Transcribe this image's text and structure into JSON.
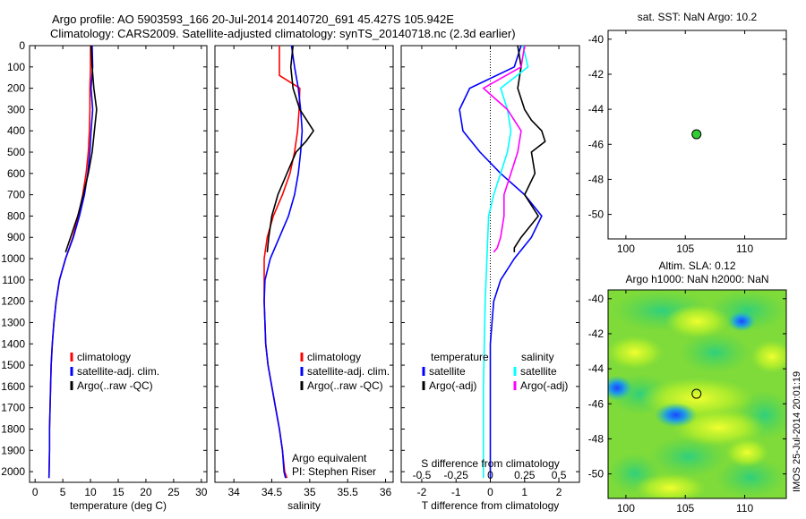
{
  "header": {
    "line1": "Argo profile: AO 5903593_166 20-Jul-2014 20140720_691 45.427S 105.942E",
    "line2": "Climatology: CARS2009. Satellite-adjusted climatology: synTS_20140718.nc (2.3d earlier)"
  },
  "side_text": "IMOS 25-Jul-2014 20:01:19",
  "colors": {
    "climatology": "#ff0000",
    "satellite": "#0000ff",
    "argo": "#000000",
    "satellite_s": "#00ffff",
    "argo_s": "#ff00ff",
    "marker": "#33cc33"
  },
  "chart_data": [
    {
      "type": "line",
      "id": "temperature",
      "xlabel": "temperature (deg C)",
      "xlim": [
        -1,
        31
      ],
      "ylim": [
        2050,
        0
      ],
      "xticks": [
        0,
        5,
        10,
        15,
        20,
        25,
        30
      ],
      "yticks": [
        0,
        100,
        200,
        300,
        400,
        500,
        600,
        700,
        800,
        900,
        1000,
        1100,
        1200,
        1300,
        1400,
        1500,
        1600,
        1700,
        1800,
        1900,
        2000
      ],
      "legend": {
        "placement": "center-left",
        "entries": [
          "climatology",
          "satellite-adj. clim.",
          "Argo(..raw -QC)"
        ]
      },
      "series": [
        {
          "name": "climatology",
          "color": "#ff0000",
          "x": [
            10.0,
            10.0,
            9.9,
            9.9,
            9.8,
            9.6,
            9.2,
            8.6,
            7.8,
            6.8,
            5.5,
            4.4,
            3.8,
            3.4,
            3.1,
            2.9,
            2.8,
            2.7,
            2.6,
            2.6,
            2.5
          ],
          "y": [
            0,
            100,
            200,
            300,
            400,
            500,
            600,
            700,
            800,
            900,
            1000,
            1100,
            1200,
            1300,
            1400,
            1500,
            1600,
            1700,
            1800,
            1900,
            2030
          ]
        },
        {
          "name": "satellite-adj. clim.",
          "color": "#0000ff",
          "x": [
            10.3,
            10.4,
            10.1,
            10.4,
            10.1,
            9.9,
            9.5,
            8.9,
            8.0,
            6.9,
            5.5,
            4.4,
            3.8,
            3.4,
            3.1,
            2.9,
            2.8,
            2.7,
            2.6,
            2.6,
            2.5
          ],
          "y": [
            0,
            100,
            200,
            300,
            400,
            500,
            600,
            700,
            800,
            900,
            1000,
            1100,
            1200,
            1300,
            1400,
            1500,
            1600,
            1700,
            1800,
            1900,
            2030
          ]
        },
        {
          "name": "Argo(..raw -QC)",
          "color": "#000000",
          "x": [
            10.1,
            10.3,
            10.6,
            11.1,
            10.7,
            10.3,
            9.6,
            8.7,
            7.7,
            6.4,
            5.5
          ],
          "y": [
            0,
            100,
            200,
            300,
            400,
            500,
            600,
            700,
            800,
            900,
            970
          ]
        }
      ]
    },
    {
      "type": "line",
      "id": "salinity",
      "xlabel": "salinity",
      "xlim": [
        33.75,
        36.1
      ],
      "ylim": [
        2050,
        0
      ],
      "xticks": [
        34,
        34.5,
        35,
        35.5,
        36
      ],
      "legend": {
        "placement": "center-right",
        "entries": [
          "climatology",
          "satellite-adj. clim.",
          "Argo(..raw -QC)"
        ]
      },
      "annotation": [
        "Argo equivalent",
        "PI: Stephen Riser"
      ],
      "series": [
        {
          "name": "climatology",
          "color": "#ff0000",
          "x": [
            34.6,
            34.6,
            34.6,
            34.87,
            34.86,
            34.84,
            34.8,
            34.74,
            34.64,
            34.52,
            34.44,
            34.4,
            34.4,
            34.42,
            34.45,
            34.5,
            34.55,
            34.6,
            34.64,
            34.67,
            34.7
          ],
          "y": [
            0,
            100,
            140,
            200,
            300,
            400,
            500,
            600,
            700,
            800,
            900,
            1000,
            1200,
            1400,
            1500,
            1600,
            1700,
            1800,
            1900,
            2000,
            2030
          ]
        },
        {
          "name": "satellite-adj. clim.",
          "color": "#0000ff",
          "x": [
            34.76,
            34.8,
            34.85,
            34.88,
            34.9,
            34.88,
            34.85,
            34.8,
            34.72,
            34.6,
            34.48,
            34.41,
            34.4,
            34.42,
            34.45,
            34.5,
            34.55,
            34.6,
            34.64,
            34.66,
            34.68
          ],
          "y": [
            0,
            100,
            200,
            300,
            400,
            500,
            600,
            700,
            800,
            900,
            1000,
            1100,
            1200,
            1400,
            1500,
            1600,
            1700,
            1800,
            1900,
            2000,
            2030
          ]
        },
        {
          "name": "Argo(..raw -QC)",
          "color": "#000000",
          "x": [
            34.78,
            34.75,
            34.78,
            34.87,
            34.96,
            35.05,
            34.95,
            34.82,
            34.7,
            34.58,
            34.5,
            34.46,
            34.44
          ],
          "y": [
            0,
            100,
            200,
            300,
            350,
            400,
            450,
            500,
            600,
            700,
            800,
            900,
            970
          ]
        }
      ]
    },
    {
      "type": "line",
      "id": "differences",
      "xlabel": "T difference from climatology",
      "xlabel_top": "S difference from climatology",
      "xlim": [
        -2.6,
        2.6
      ],
      "ylim": [
        2050,
        0
      ],
      "xticks": [
        -2,
        -1,
        0,
        1,
        2
      ],
      "xticks_top": [
        -0.5,
        -0.25,
        0,
        0.25,
        0.5
      ],
      "legend_left": {
        "title": "temperature",
        "entries": [
          "satellite",
          "Argo(-adj)"
        ]
      },
      "legend_right": {
        "title": "salinity",
        "entries": [
          "satellite",
          "Argo(-adj)"
        ]
      },
      "series": [
        {
          "name": "satellite",
          "quantity": "temperature",
          "color": "#0000ff",
          "x": [
            0.9,
            0.7,
            -0.6,
            -0.9,
            -0.8,
            -0.3,
            0.3,
            1.0,
            1.5,
            1.2,
            0.7,
            0.3,
            0.1,
            0.0,
            0.0,
            0.0
          ],
          "y": [
            0,
            100,
            200,
            300,
            400,
            500,
            600,
            700,
            800,
            900,
            1000,
            1100,
            1200,
            1400,
            1800,
            2030
          ]
        },
        {
          "name": "Argo(-adj)",
          "quantity": "temperature",
          "color": "#000000",
          "x": [
            0.8,
            0.9,
            0.8,
            1.0,
            1.2,
            1.5,
            1.6,
            1.2,
            1.3,
            1.0,
            1.4,
            0.9,
            0.7,
            0.7
          ],
          "y": [
            0,
            100,
            200,
            300,
            350,
            400,
            450,
            500,
            600,
            700,
            800,
            900,
            950,
            970
          ]
        },
        {
          "name": "satellite",
          "quantity": "salinity",
          "color": "#00ffff",
          "x": [
            0.95,
            1.1,
            0.3,
            0.5,
            0.6,
            0.5,
            0.3,
            0.1,
            -0.05,
            -0.1,
            -0.15,
            -0.2,
            -0.2
          ],
          "y": [
            0,
            100,
            200,
            300,
            400,
            500,
            600,
            700,
            800,
            1000,
            1200,
            1600,
            2030
          ]
        },
        {
          "name": "Argo(-adj)",
          "quantity": "salinity",
          "color": "#ff00ff",
          "x": [
            1.0,
            0.9,
            -0.2,
            0.5,
            0.9,
            0.8,
            0.6,
            0.4,
            0.4,
            0.3,
            0.2,
            0.15,
            0.1
          ],
          "y": [
            0,
            100,
            200,
            300,
            400,
            500,
            600,
            700,
            800,
            900,
            950,
            960,
            970
          ]
        }
      ]
    },
    {
      "type": "scatter",
      "id": "sst",
      "title": "sat. SST: NaN Argo: 10.2",
      "xlim": [
        98.5,
        113.5
      ],
      "ylim": [
        -51.4,
        -39.5
      ],
      "xticks": [
        100,
        105,
        110
      ],
      "yticks": [
        -40,
        -42,
        -44,
        -46,
        -48,
        -50
      ],
      "points": [
        {
          "x": 105.942,
          "y": -45.427,
          "color": "#33cc33"
        }
      ]
    },
    {
      "type": "heatmap",
      "id": "sla",
      "title": [
        "Altim. SLA: 0.12",
        "Argo h1000: NaN h2000: NaN"
      ],
      "xlim": [
        98.5,
        113.5
      ],
      "ylim": [
        -51.4,
        -39.5
      ],
      "xticks": [
        100,
        105,
        110
      ],
      "yticks": [
        -40,
        -42,
        -44,
        -46,
        -48,
        -50
      ],
      "points": [
        {
          "x": 105.942,
          "y": -45.427
        }
      ]
    }
  ]
}
